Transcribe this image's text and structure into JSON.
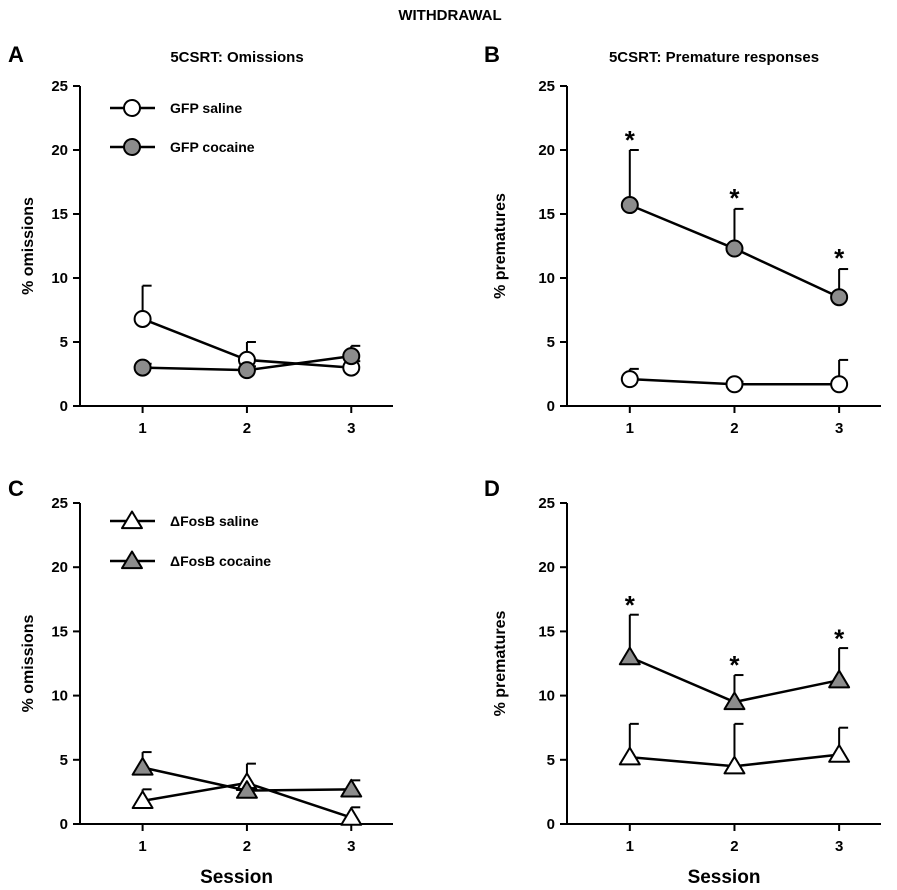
{
  "figure_title": "WITHDRAWAL",
  "colors": {
    "saline_fill": "#ffffff",
    "cocaine_fill": "#8c8c8c",
    "stroke": "#000000"
  },
  "chart_data": [
    {
      "panel": "A",
      "type": "line",
      "title": "5CSRT: Omissions",
      "xlabel": "",
      "ylabel": "% omissions",
      "x": [
        1,
        2,
        3
      ],
      "xticks": [
        "1",
        "2",
        "3"
      ],
      "ylim": [
        0,
        25
      ],
      "yticks": [
        0,
        5,
        10,
        15,
        20,
        25
      ],
      "marker": "circle",
      "legend": "top-left",
      "series": [
        {
          "name": "GFP saline",
          "fill": "saline",
          "values": [
            6.8,
            3.6,
            3.0
          ],
          "err_up": [
            2.6,
            1.4,
            0.5
          ]
        },
        {
          "name": "GFP cocaine",
          "fill": "cocaine",
          "values": [
            3.0,
            2.8,
            3.9
          ],
          "err_up": [
            0.3,
            0.3,
            0.8
          ]
        }
      ],
      "annotations": []
    },
    {
      "panel": "B",
      "type": "line",
      "title": "5CSRT: Premature responses",
      "xlabel": "",
      "ylabel": "% prematures",
      "x": [
        1,
        2,
        3
      ],
      "xticks": [
        "1",
        "2",
        "3"
      ],
      "ylim": [
        0,
        25
      ],
      "yticks": [
        0,
        5,
        10,
        15,
        20,
        25
      ],
      "marker": "circle",
      "legend": "none",
      "series": [
        {
          "fill": "saline",
          "values": [
            2.1,
            1.7,
            1.7
          ],
          "err_up": [
            0.8,
            0.2,
            1.9
          ]
        },
        {
          "fill": "cocaine",
          "values": [
            15.7,
            12.3,
            8.5
          ],
          "err_up": [
            4.3,
            3.1,
            2.2
          ]
        }
      ],
      "annotations": [
        {
          "x": 1,
          "y": 21.0,
          "text": "*"
        },
        {
          "x": 2,
          "y": 16.5,
          "text": "*"
        },
        {
          "x": 3,
          "y": 11.8,
          "text": "*"
        }
      ]
    },
    {
      "panel": "C",
      "type": "line",
      "title": "",
      "xlabel": "Session",
      "ylabel": "% omissions",
      "x": [
        1,
        2,
        3
      ],
      "xticks": [
        "1",
        "2",
        "3"
      ],
      "ylim": [
        0,
        25
      ],
      "yticks": [
        0,
        5,
        10,
        15,
        20,
        25
      ],
      "marker": "triangle",
      "legend": "top-left",
      "series": [
        {
          "name": "ΔFosB saline",
          "fill": "saline",
          "values": [
            1.8,
            3.2,
            0.5
          ],
          "err_up": [
            0.9,
            1.5,
            0.8
          ]
        },
        {
          "name": "ΔFosB cocaine",
          "fill": "cocaine",
          "values": [
            4.4,
            2.6,
            2.7
          ],
          "err_up": [
            1.2,
            0.2,
            0.7
          ]
        }
      ],
      "annotations": []
    },
    {
      "panel": "D",
      "type": "line",
      "title": "",
      "xlabel": "Session",
      "ylabel": "% prematures",
      "x": [
        1,
        2,
        3
      ],
      "xticks": [
        "1",
        "2",
        "3"
      ],
      "ylim": [
        0,
        25
      ],
      "yticks": [
        0,
        5,
        10,
        15,
        20,
        25
      ],
      "marker": "triangle",
      "legend": "none",
      "series": [
        {
          "fill": "saline",
          "values": [
            5.2,
            4.5,
            5.4
          ],
          "err_up": [
            2.6,
            3.3,
            2.1
          ]
        },
        {
          "fill": "cocaine",
          "values": [
            13.0,
            9.5,
            11.2
          ],
          "err_up": [
            3.3,
            2.1,
            2.5
          ]
        }
      ],
      "annotations": [
        {
          "x": 1,
          "y": 17.3,
          "text": "*"
        },
        {
          "x": 2,
          "y": 12.6,
          "text": "*"
        },
        {
          "x": 3,
          "y": 14.7,
          "text": "*"
        }
      ]
    }
  ]
}
